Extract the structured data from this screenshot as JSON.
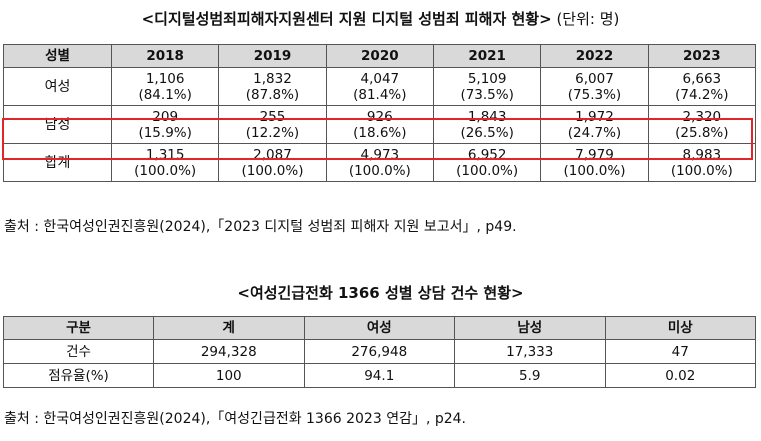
{
  "table1": {
    "title": "<디지털성범죄피해자지원센터 지원 디지털 성범죄 피해자 현황>",
    "unit": "(단위: 명)",
    "headers": [
      "성별",
      "2018",
      "2019",
      "2020",
      "2021",
      "2022",
      "2023"
    ],
    "rows": [
      {
        "label": "여성",
        "cells": [
          [
            "1,106",
            "(84.1%)"
          ],
          [
            "1,832",
            "(87.8%)"
          ],
          [
            "4,047",
            "(81.4%)"
          ],
          [
            "5,109",
            "(73.5%)"
          ],
          [
            "6,007",
            "(75.3%)"
          ],
          [
            "6,663",
            "(74.2%)"
          ]
        ]
      },
      {
        "label": "남성",
        "cells": [
          [
            "209",
            "(15.9%)"
          ],
          [
            "255",
            "(12.2%)"
          ],
          [
            "926",
            "(18.6%)"
          ],
          [
            "1,843",
            "(26.5%)"
          ],
          [
            "1,972",
            "(24.7%)"
          ],
          [
            "2,320",
            "(25.8%)"
          ]
        ]
      },
      {
        "label": "합계",
        "cells": [
          [
            "1,315",
            "(100.0%)"
          ],
          [
            "2,087",
            "(100.0%)"
          ],
          [
            "4,973",
            "(100.0%)"
          ],
          [
            "6,952",
            "(100.0%)"
          ],
          [
            "7,979",
            "(100.0%)"
          ],
          [
            "8,983",
            "(100.0%)"
          ]
        ]
      }
    ],
    "highlight_color": "#e0262a",
    "source": "출처 : 한국여성인권진흥원(2024),「2023 디지털 성범죄 피해자 지원 보고서」, p49."
  },
  "table2": {
    "title": "<여성긴급전화 1366 성별 상담 건수 현황>",
    "headers": [
      "구분",
      "계",
      "여성",
      "남성",
      "미상"
    ],
    "rows": [
      {
        "label": "건수",
        "cells": [
          "294,328",
          "276,948",
          "17,333",
          "47"
        ]
      },
      {
        "label": "점유율(%)",
        "cells": [
          "100",
          "94.1",
          "5.9",
          "0.02"
        ]
      }
    ],
    "source": "출처 : 한국여성인권진흥원(2024),「여성긴급전화 1366 2023 연감」, p24."
  }
}
